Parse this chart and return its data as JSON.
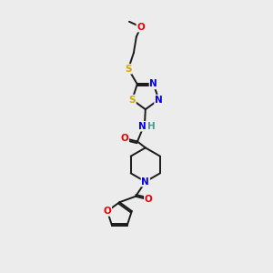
{
  "bg_color": "#ececec",
  "bond_color": "#1a1a1a",
  "atom_colors": {
    "N": "#0000ee",
    "O": "#ee0000",
    "S": "#ccaa00",
    "H": "#4a9a8a",
    "C": "#1a1a1a"
  },
  "figsize": [
    3.0,
    3.0
  ],
  "dpi": 100
}
